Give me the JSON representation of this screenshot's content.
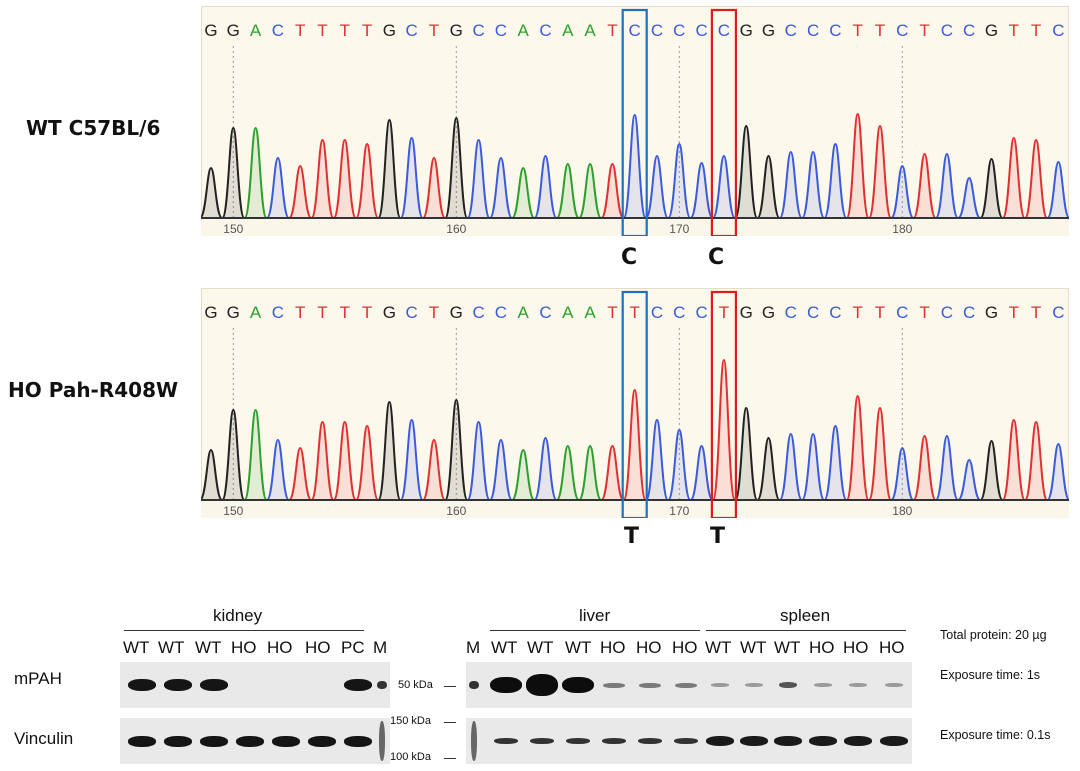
{
  "chromatograms": [
    {
      "label": "WT C57BL/6",
      "sequence": [
        "G",
        "G",
        "A",
        "C",
        "T",
        "T",
        "T",
        "T",
        "G",
        "C",
        "T",
        "G",
        "C",
        "C",
        "A",
        "C",
        "A",
        "A",
        "T",
        "C",
        "C",
        "C",
        "C",
        "C",
        "G",
        "G",
        "C",
        "C",
        "C",
        "T",
        "T",
        "C",
        "T",
        "C",
        "C",
        "G",
        "T",
        "T",
        "C"
      ],
      "calls": [
        {
          "box": "blue",
          "base": "C"
        },
        {
          "box": "red",
          "base": "C"
        }
      ]
    },
    {
      "label": "HO Pah-R408W",
      "sequence": [
        "G",
        "G",
        "A",
        "C",
        "T",
        "T",
        "T",
        "T",
        "G",
        "C",
        "T",
        "G",
        "C",
        "C",
        "A",
        "C",
        "A",
        "A",
        "T",
        "T",
        "C",
        "C",
        "C",
        "T",
        "G",
        "G",
        "C",
        "C",
        "C",
        "T",
        "T",
        "C",
        "T",
        "C",
        "C",
        "G",
        "T",
        "T",
        "C"
      ],
      "calls": [
        {
          "box": "blue",
          "base": "T"
        },
        {
          "box": "red",
          "base": "T"
        }
      ]
    }
  ],
  "axis_ticks": [
    "150",
    "160",
    "170",
    "180"
  ],
  "base_colors": {
    "A": "#2ca02c",
    "C": "#3b5bdb",
    "G": "#222222",
    "T": "#e03131"
  },
  "highlight_colors": {
    "blue": "#1f6fbf",
    "red": "#e01b1b"
  },
  "western_blot": {
    "tissues": [
      "kidney",
      "liver",
      "spleen"
    ],
    "kidney_lanes": [
      "WT",
      "WT",
      "WT",
      "HO",
      "HO",
      "HO",
      "PC",
      "M"
    ],
    "right_lanes": [
      "M",
      "WT",
      "WT",
      "WT",
      "HO",
      "HO",
      "HO",
      "WT",
      "WT",
      "WT",
      "HO",
      "HO",
      "HO"
    ],
    "rows": [
      "mPAH",
      "Vinculin"
    ],
    "markers": [
      "50 kDa",
      "150 kDa",
      "100 kDa"
    ],
    "notes": [
      "Total protein: 20 µg",
      "Exposure time: 1s",
      "Exposure time: 0.1s"
    ]
  }
}
